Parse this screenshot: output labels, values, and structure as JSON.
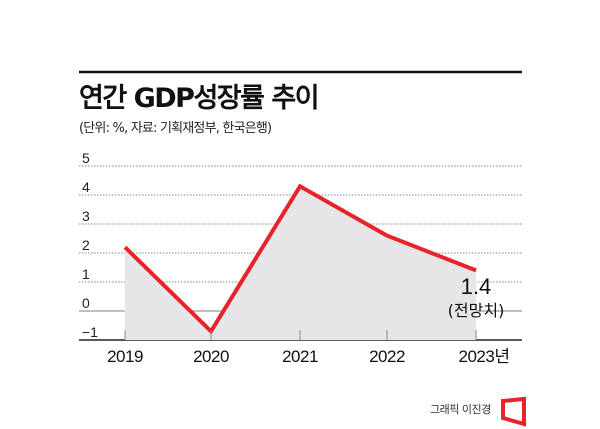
{
  "chart_data": {
    "type": "area",
    "title": "연간 GDP성장률 추이",
    "subtitle": "(단위: %, 자료: 기획재정부, 한국은행)",
    "categories": [
      "2019",
      "2020",
      "2021",
      "2022",
      "2023년"
    ],
    "values": [
      2.2,
      -0.7,
      4.3,
      2.6,
      1.4
    ],
    "ylim": [
      -1,
      5
    ],
    "yticks": [
      "5",
      "4",
      "3",
      "2",
      "1",
      "0",
      "-1"
    ],
    "grid": true,
    "annotation": {
      "value": "1.4",
      "note": "(전망치)"
    },
    "colors": {
      "line": "#e8242a",
      "area": "#e6e6e8",
      "grid": "#888888"
    }
  },
  "credit": "그래픽 이진경",
  "logo_color": "#e8242a"
}
